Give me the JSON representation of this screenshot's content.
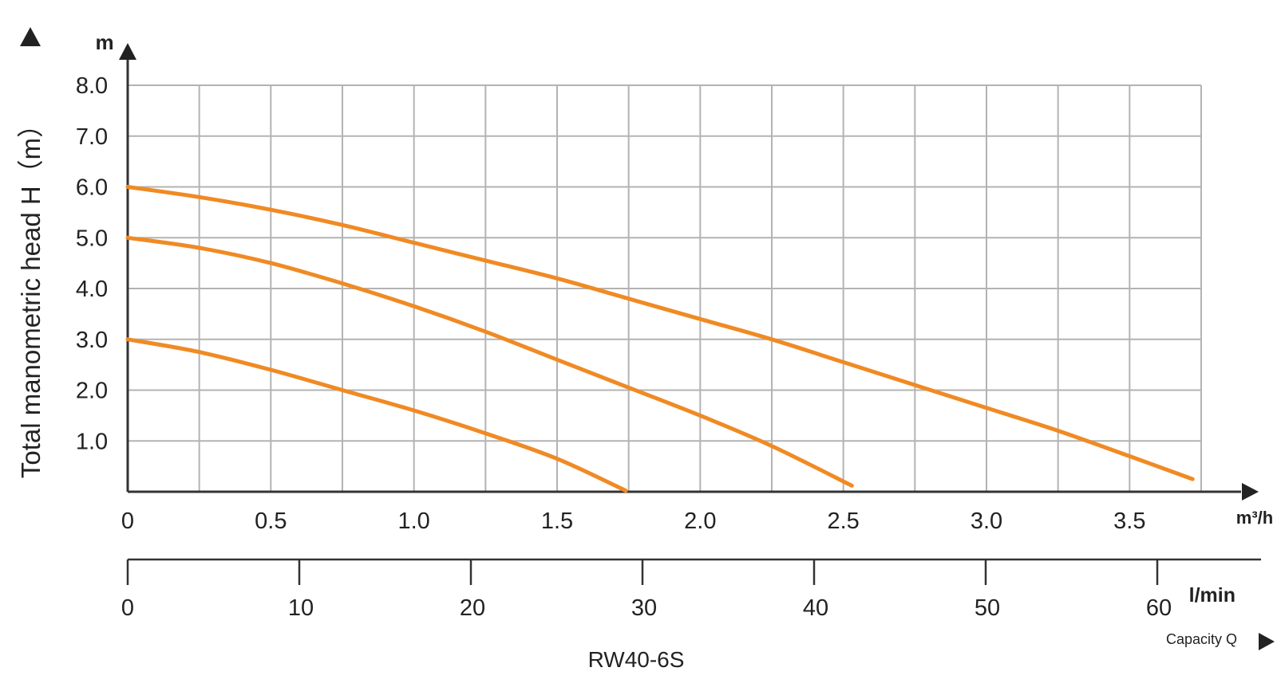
{
  "chart_data": {
    "type": "line",
    "title": "RW40-6S",
    "ylabel": "Total manometric head H（m）",
    "y_unit": "m",
    "x_unit_m3h": "m³/h",
    "x_unit_lmin": "l/min",
    "xlabel": "Capacity Q",
    "xlim_m3h": [
      0,
      3.75
    ],
    "ylim": [
      0,
      8
    ],
    "x_ticks_m3h": [
      "0",
      "0.5",
      "1.0",
      "1.5",
      "2.0",
      "2.5",
      "3.0",
      "3.5"
    ],
    "x_ticks_lmin": [
      "0",
      "10",
      "20",
      "30",
      "40",
      "50",
      "60"
    ],
    "y_ticks": [
      "1.0",
      "2.0",
      "3.0",
      "4.0",
      "5.0",
      "6.0",
      "7.0",
      "8.0"
    ],
    "grid": true,
    "series": [
      {
        "values": [
          [
            0,
            6.0
          ],
          [
            0.25,
            5.8
          ],
          [
            0.5,
            5.55
          ],
          [
            0.75,
            5.25
          ],
          [
            1.0,
            4.9
          ],
          [
            1.25,
            4.55
          ],
          [
            1.5,
            4.2
          ],
          [
            1.75,
            3.8
          ],
          [
            2.0,
            3.4
          ],
          [
            2.25,
            3.0
          ],
          [
            2.5,
            2.55
          ],
          [
            2.75,
            2.1
          ],
          [
            3.0,
            1.65
          ],
          [
            3.25,
            1.2
          ],
          [
            3.5,
            0.7
          ],
          [
            3.72,
            0.25
          ]
        ]
      },
      {
        "values": [
          [
            0,
            5.0
          ],
          [
            0.25,
            4.8
          ],
          [
            0.5,
            4.5
          ],
          [
            0.75,
            4.1
          ],
          [
            1.0,
            3.65
          ],
          [
            1.25,
            3.15
          ],
          [
            1.5,
            2.6
          ],
          [
            1.75,
            2.05
          ],
          [
            2.0,
            1.5
          ],
          [
            2.25,
            0.9
          ],
          [
            2.53,
            0.12
          ]
        ]
      },
      {
        "values": [
          [
            0,
            3.0
          ],
          [
            0.25,
            2.75
          ],
          [
            0.5,
            2.4
          ],
          [
            0.75,
            2.0
          ],
          [
            1.0,
            1.6
          ],
          [
            1.25,
            1.15
          ],
          [
            1.5,
            0.65
          ],
          [
            1.74,
            0.02
          ]
        ]
      }
    ],
    "line_color": "#f08a24",
    "grid_color": "#b3b3b3"
  }
}
